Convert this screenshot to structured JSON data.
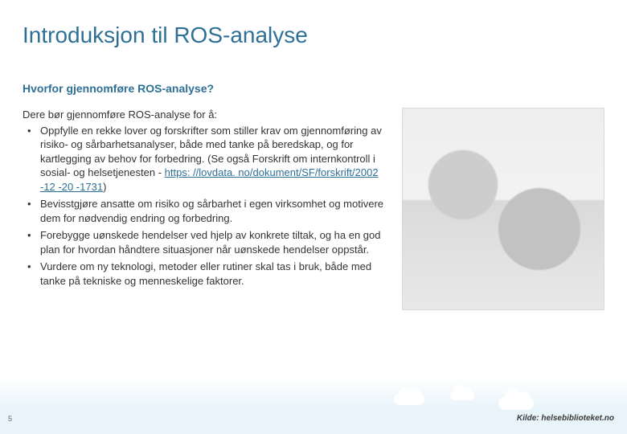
{
  "colors": {
    "title": "#2e6f96",
    "subtitle": "#2e6f96",
    "body": "#333333",
    "link": "#2e6f96",
    "pagenum": "#666666",
    "source": "#3a3a3a"
  },
  "title": "Introduksjon til ROS-analyse",
  "subtitle": "Hvorfor gjennomføre ROS-analyse?",
  "intro": "Dere bør gjennomføre ROS-analyse for å:",
  "bullets": [
    {
      "pre": "Oppfylle en rekke lover og forskrifter som stiller krav om gjennomføring av risiko- og sårbarhetsanalyser, både med tanke på beredskap, og for kartlegging av behov for forbedring. (Se også Forskrift om internkontroll i sosial- og helsetjenesten - ",
      "link_text": "https: //lovdata. no/dokument/SF/forskrift/2002 -12 -20 -1731",
      "post": ")"
    },
    {
      "pre": "Bevisstgjøre ansatte om risiko og sårbarhet i egen virksomhet og motivere dem for nødvendig endring og forbedring.",
      "link_text": "",
      "post": ""
    },
    {
      "pre": "Forebygge uønskede hendelser ved hjelp av konkrete tiltak, og ha en god plan for hvordan håndtere situasjoner når uønskede hendelser oppstår.",
      "link_text": "",
      "post": ""
    },
    {
      "pre": "Vurdere om ny teknologi, metoder eller rutiner skal tas i bruk, både med tanke på tekniske og menneskelige faktorer.",
      "link_text": "",
      "post": ""
    }
  ],
  "page_number": "5",
  "source_label": "Kilde: helsebiblioteket.no"
}
